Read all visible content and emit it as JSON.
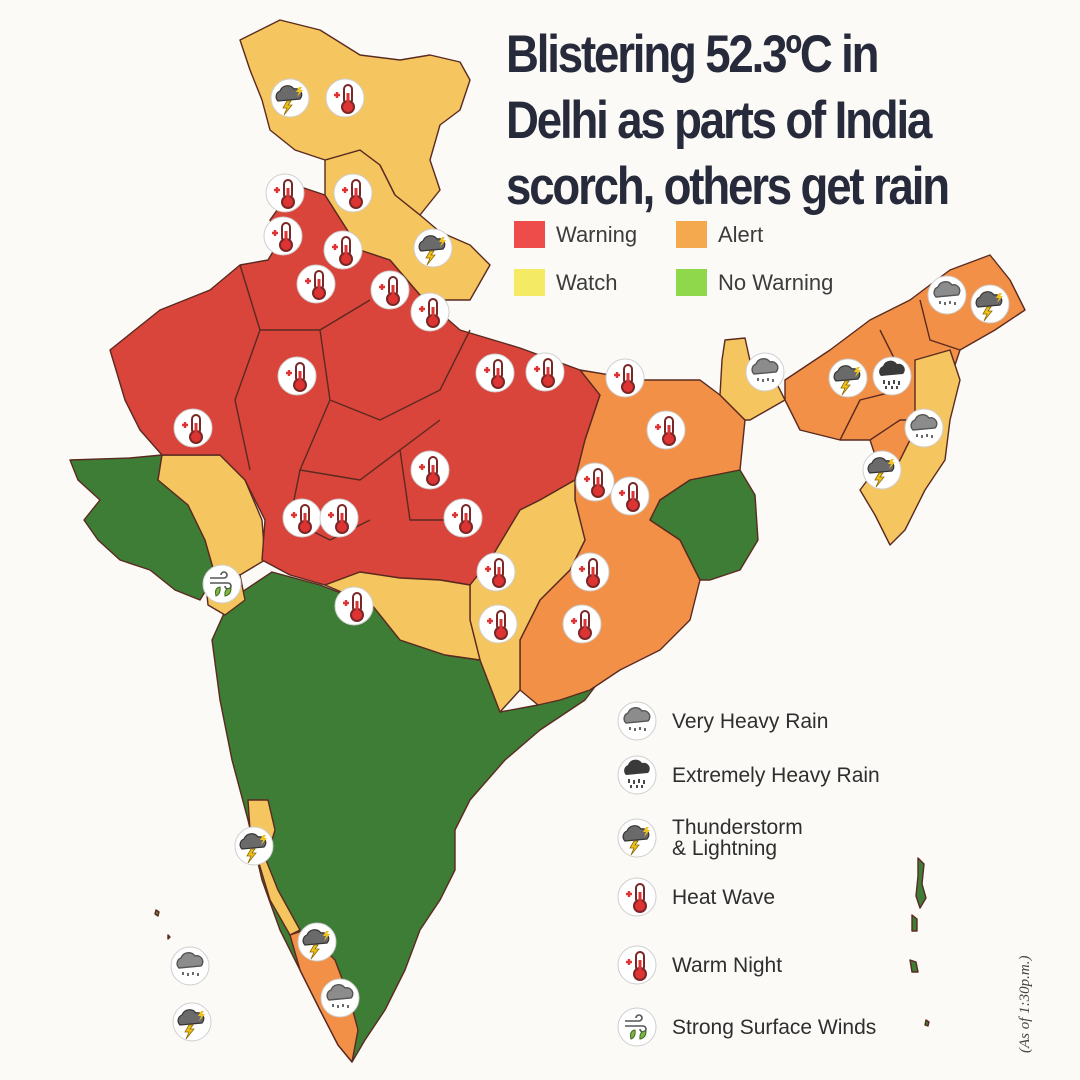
{
  "headline": {
    "line1": "Blistering 52.3ºC in",
    "line2": "Delhi as parts of India",
    "line3": "scorch, others get rain"
  },
  "colors": {
    "warning": "#d9443b",
    "alert": "#f29048",
    "watch": "#f5c55f",
    "no_warning": "#3d7d35",
    "warning_swatch": "#ee4b4b",
    "alert_swatch": "#f5a94e",
    "watch_swatch": "#f5ea64",
    "no_warning_swatch": "#8fd84b"
  },
  "color_legend": {
    "warning": "Warning",
    "alert": "Alert",
    "watch": "Watch",
    "no_warning": "No Warning"
  },
  "icon_legend": {
    "very_heavy_rain": "Very Heavy Rain",
    "extremely_heavy_rain": "Extremely Heavy Rain",
    "thunderstorm_line1": "Thunderstorm",
    "thunderstorm_line2": "& Lightning",
    "heat_wave": "Heat Wave",
    "warm_night": "Warm Night",
    "strong_surface_winds": "Strong Surface Winds"
  },
  "icon_names": [
    "rain-cloud-icon",
    "heavy-rain-cloud-icon",
    "thunderstorm-icon",
    "heat-wave-icon",
    "warm-night-icon",
    "wind-icon"
  ],
  "footnote": "(As of 1:30p.m.)"
}
